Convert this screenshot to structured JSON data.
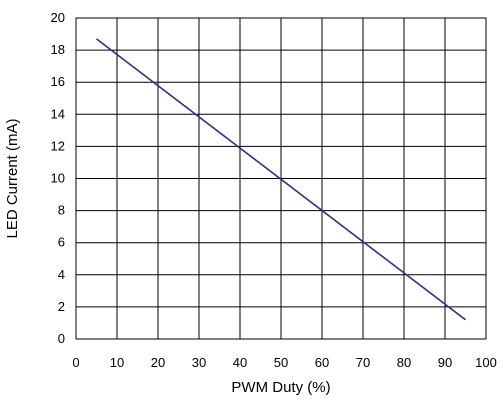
{
  "chart_data": {
    "type": "line",
    "title": "",
    "xlabel": "PWM Duty (%)",
    "ylabel": "LED Current (mA)",
    "xlim": [
      0,
      100
    ],
    "ylim": [
      0,
      20
    ],
    "x_ticks": [
      "0",
      "10",
      "20",
      "30",
      "40",
      "50",
      "60",
      "70",
      "80",
      "90",
      "100"
    ],
    "y_ticks": [
      "0",
      "2",
      "4",
      "6",
      "8",
      "10",
      "12",
      "14",
      "16",
      "18",
      "20"
    ],
    "grid": true,
    "line_color": "#2b2f8f",
    "series": [
      {
        "x": [
          5,
          95
        ],
        "y": [
          18.7,
          1.2
        ]
      }
    ]
  }
}
